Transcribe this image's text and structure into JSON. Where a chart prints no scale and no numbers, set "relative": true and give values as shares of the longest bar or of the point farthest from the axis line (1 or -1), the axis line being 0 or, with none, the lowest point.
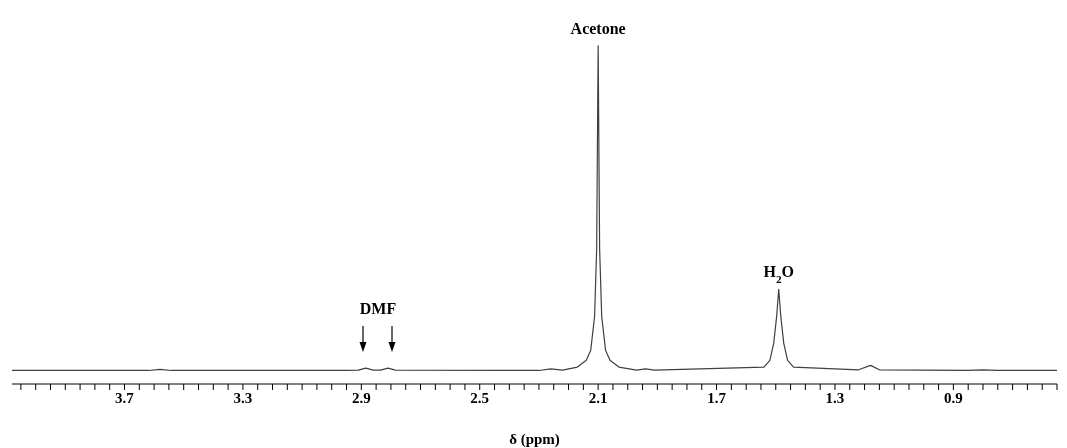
{
  "chart_data": {
    "type": "line",
    "relative": true,
    "xlabel": "δ (ppm)",
    "color": "#404040",
    "marker": "none",
    "xlim": [
      4.08,
      0.55
    ],
    "xticks": [
      {
        "value": 4.05,
        "label": null
      },
      {
        "value": 4.0,
        "label": null
      },
      {
        "value": 3.95,
        "label": null
      },
      {
        "value": 3.9,
        "label": null
      },
      {
        "value": 3.85,
        "label": null
      },
      {
        "value": 3.8,
        "label": null
      },
      {
        "value": 3.75,
        "label": null
      },
      3.7,
      {
        "value": 3.65,
        "label": null
      },
      {
        "value": 3.6,
        "label": null
      },
      {
        "value": 3.55,
        "label": null
      },
      {
        "value": 3.5,
        "label": null
      },
      {
        "value": 3.45,
        "label": null
      },
      {
        "value": 3.4,
        "label": null
      },
      {
        "value": 3.35,
        "label": null
      },
      3.3,
      {
        "value": 3.25,
        "label": null
      },
      {
        "value": 3.2,
        "label": null
      },
      {
        "value": 3.15,
        "label": null
      },
      {
        "value": 3.1,
        "label": null
      },
      {
        "value": 3.05,
        "label": null
      },
      {
        "value": 3.0,
        "label": null
      },
      {
        "value": 2.95,
        "label": null
      },
      2.9,
      {
        "value": 2.85,
        "label": null
      },
      {
        "value": 2.8,
        "label": null
      },
      {
        "value": 2.75,
        "label": null
      },
      {
        "value": 2.7,
        "label": null
      },
      {
        "value": 2.65,
        "label": null
      },
      {
        "value": 2.6,
        "label": null
      },
      {
        "value": 2.55,
        "label": null
      },
      2.5,
      {
        "value": 2.45,
        "label": null
      },
      {
        "value": 2.4,
        "label": null
      },
      {
        "value": 2.35,
        "label": null
      },
      {
        "value": 2.3,
        "label": null
      },
      {
        "value": 2.25,
        "label": null
      },
      {
        "value": 2.2,
        "label": null
      },
      {
        "value": 2.15,
        "label": null
      },
      2.1,
      {
        "value": 2.05,
        "label": null
      },
      {
        "value": 2.0,
        "label": null
      },
      {
        "value": 1.95,
        "label": null
      },
      {
        "value": 1.9,
        "label": null
      },
      {
        "value": 1.85,
        "label": null
      },
      {
        "value": 1.8,
        "label": null
      },
      {
        "value": 1.75,
        "label": null
      },
      1.7,
      {
        "value": 1.65,
        "label": null
      },
      {
        "value": 1.6,
        "label": null
      },
      {
        "value": 1.55,
        "label": null
      },
      {
        "value": 1.5,
        "label": null
      },
      {
        "value": 1.45,
        "label": null
      },
      {
        "value": 1.4,
        "label": null
      },
      {
        "value": 1.35,
        "label": null
      },
      1.3,
      {
        "value": 1.25,
        "label": null
      },
      {
        "value": 1.2,
        "label": null
      },
      {
        "value": 1.15,
        "label": null
      },
      {
        "value": 1.1,
        "label": null
      },
      {
        "value": 1.05,
        "label": null
      },
      {
        "value": 1.0,
        "label": null
      },
      {
        "value": 0.95,
        "label": null
      },
      0.9,
      {
        "value": 0.85,
        "label": null
      },
      {
        "value": 0.8,
        "label": null
      },
      {
        "value": 0.75,
        "label": null
      },
      {
        "value": 0.7,
        "label": null
      },
      {
        "value": 0.65,
        "label": null
      },
      {
        "value": 0.6,
        "label": null
      },
      {
        "value": 0.55,
        "label": null
      }
    ],
    "x": [
      4.08,
      3.62,
      3.58,
      3.54,
      2.95,
      2.91,
      2.885,
      2.86,
      2.835,
      2.81,
      2.785,
      2.3,
      2.26,
      2.22,
      2.17,
      2.14,
      2.125,
      2.112,
      2.105,
      2.1,
      2.095,
      2.088,
      2.075,
      2.06,
      2.03,
      1.97,
      1.94,
      1.91,
      1.54,
      1.52,
      1.507,
      1.497,
      1.49,
      1.483,
      1.473,
      1.46,
      1.44,
      1.22,
      1.18,
      1.15,
      0.85,
      0.8,
      0.75,
      0.55
    ],
    "values": [
      0.04,
      0.04,
      0.043,
      0.04,
      0.04,
      0.041,
      0.047,
      0.041,
      0.041,
      0.047,
      0.041,
      0.04,
      0.045,
      0.041,
      0.05,
      0.07,
      0.1,
      0.2,
      0.4,
      1,
      0.4,
      0.2,
      0.1,
      0.07,
      0.05,
      0.041,
      0.045,
      0.041,
      0.05,
      0.07,
      0.12,
      0.2,
      0.28,
      0.2,
      0.12,
      0.07,
      0.05,
      0.042,
      0.055,
      0.042,
      0.04,
      0.042,
      0.04,
      0.04
    ],
    "annotations": [
      {
        "text": "Acetone",
        "x": 2.1,
        "y": 1
      },
      {
        "text": "H$_{2}$O",
        "x": 1.49,
        "y": 0.28
      },
      "DMF"
    ]
  }
}
